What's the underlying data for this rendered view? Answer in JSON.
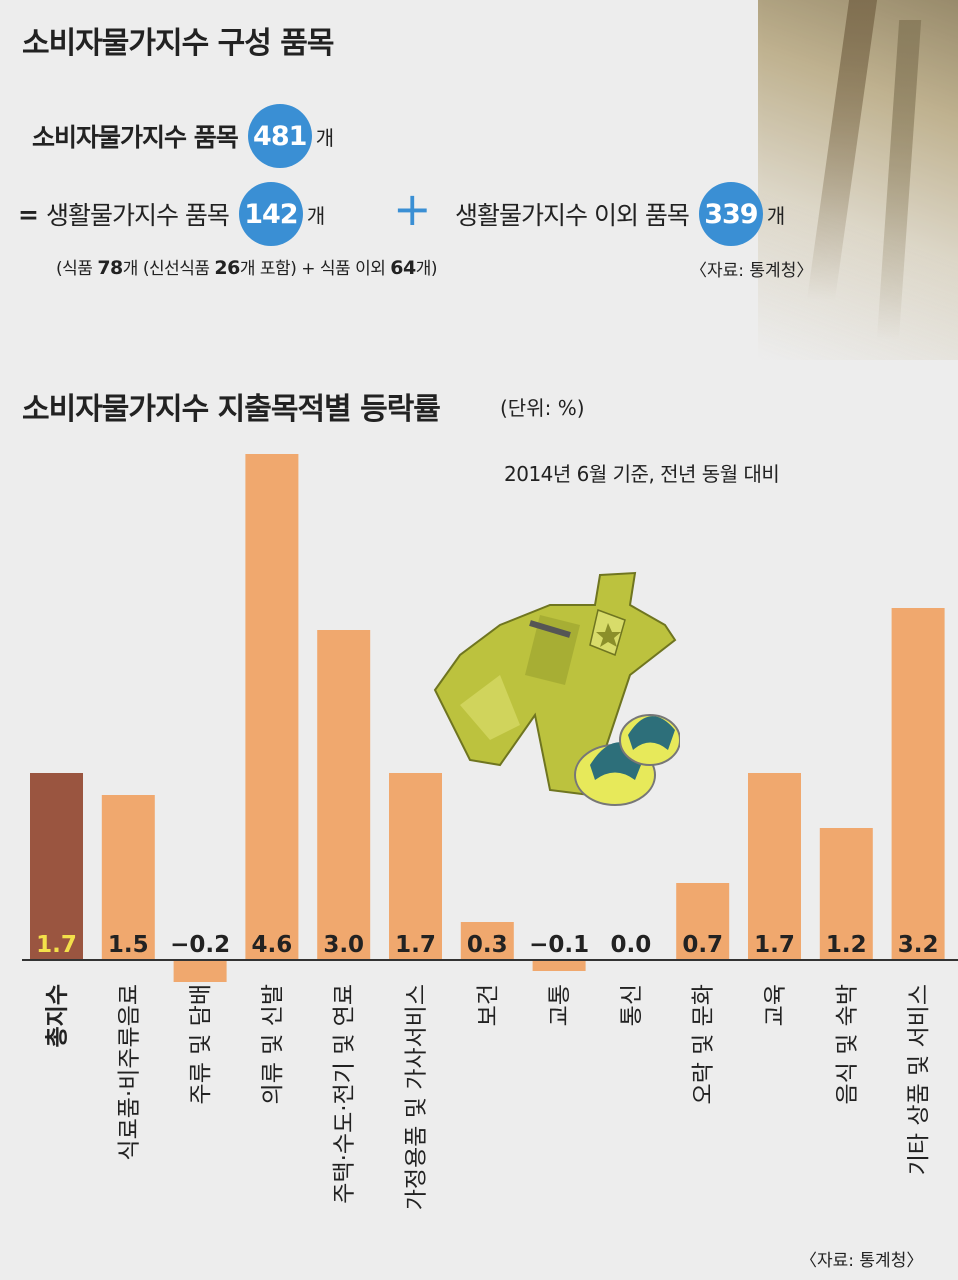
{
  "composition": {
    "title": "소비자물가지수 구성 품목",
    "total_label": "소비자물가지수 품목",
    "total_value": "481",
    "unit": "개",
    "eq_sign": "=",
    "living_label": "생활물가지수 품목",
    "living_value": "142",
    "plus_sign": "+",
    "other_label": "생활물가지수 이외 품목",
    "other_value": "339",
    "note_p1": "(식품 ",
    "note_v1": "78",
    "note_p2": "개 (신선식품 ",
    "note_v2": "26",
    "note_p3": "개 포함) + 식품 이외 ",
    "note_v3": "64",
    "note_p4": "개)",
    "source": "〈자료: 통계청〉"
  },
  "chart_section": {
    "title": "소비자물가지수 지출목적별 등락률",
    "unit_label": "(단위: %)",
    "basis": "2014년 6월 기준, 전년 동월 대비",
    "source": "〈자료: 통계청〉"
  },
  "chart_data": {
    "type": "bar",
    "title": "소비자물가지수 지출목적별 등락률",
    "unit": "%",
    "categories": [
      "총지수",
      "식료품·비주류음료",
      "주류 및 담배",
      "의류 및 신발",
      "주택·수도·전기 및 연료",
      "가정용품 및 가사서비스",
      "보건",
      "교통",
      "통신",
      "오락 및 문화",
      "교육",
      "음식 및 숙박",
      "기타 상품 및 서비스"
    ],
    "values": [
      1.7,
      1.5,
      -0.2,
      4.6,
      3.0,
      1.7,
      0.3,
      -0.1,
      0.0,
      0.7,
      1.7,
      1.2,
      3.2
    ],
    "value_labels": [
      "1.7",
      "1.5",
      "−0.2",
      "4.6",
      "3.0",
      "1.7",
      "0.3",
      "−0.1",
      "0.0",
      "0.7",
      "1.7",
      "1.2",
      "3.2"
    ],
    "highlight_index": 0,
    "colors": {
      "highlight": "#9a5540",
      "bar": "#f0a86e",
      "highlight_label": "#f3e04a",
      "label": "#222222",
      "axis": "#333333"
    }
  }
}
